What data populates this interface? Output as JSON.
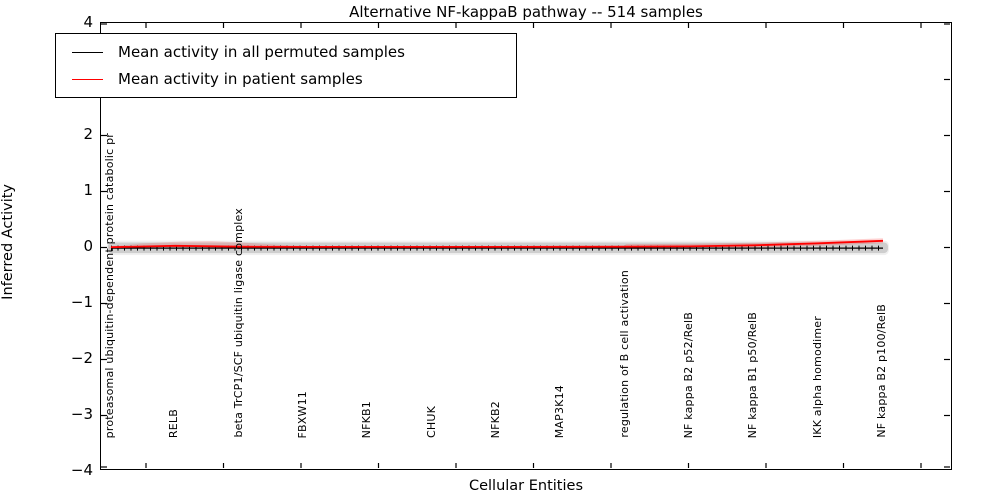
{
  "title": "Alternative NF-kappaB pathway -- 514 samples",
  "axes": {
    "ylabel": "Inferred Activity",
    "xlabel": "Cellular Entities",
    "yticks": [
      {
        "value": 4,
        "label": "4"
      },
      {
        "value": 3,
        "label": "3"
      },
      {
        "value": 2,
        "label": "2"
      },
      {
        "value": 1,
        "label": "1"
      },
      {
        "value": 0,
        "label": "0"
      },
      {
        "value": -1,
        "label": "−1"
      },
      {
        "value": -2,
        "label": "−2"
      },
      {
        "value": -3,
        "label": "−3"
      },
      {
        "value": -4,
        "label": "−4"
      }
    ]
  },
  "legend": {
    "items": [
      {
        "label": "Mean activity in all permuted samples",
        "color": "#000000"
      },
      {
        "label": "Mean activity in patient samples",
        "color": "#ff0000"
      }
    ]
  },
  "chart_data": {
    "type": "line",
    "title": "Alternative NF-kappaB pathway -- 514 samples",
    "xlabel": "Cellular Entities",
    "ylabel": "Inferred Activity",
    "ylim": [
      -4,
      4
    ],
    "grid": false,
    "legend_position": "upper left",
    "categories": [
      "proteasomal ubiquitin-dependent protein catabolic pr",
      "RELB",
      "beta TrCP1/SCF ubiquitin ligase complex",
      "FBXW11",
      "NFKB1",
      "CHUK",
      "NFKB2",
      "MAP3K14",
      "regulation of B cell activation",
      "NF kappa B2 p52/RelB",
      "NF kappa B1 p50/RelB",
      "IKK alpha homodimer",
      "NF kappa B2 p100/RelB"
    ],
    "series": [
      {
        "name": "Mean activity in all permuted samples",
        "color": "#000000",
        "marker": "tick",
        "values": [
          -0.01,
          -0.01,
          -0.01,
          -0.01,
          -0.01,
          -0.01,
          -0.01,
          -0.01,
          -0.01,
          -0.01,
          -0.01,
          -0.01,
          -0.01
        ]
      },
      {
        "name": "Mean activity in patient samples",
        "color": "#ff0000",
        "marker": "none",
        "values": [
          0.005,
          0.03,
          0.015,
          0.01,
          0.01,
          0.01,
          0.01,
          0.012,
          0.015,
          0.02,
          0.04,
          0.075,
          0.12
        ]
      }
    ],
    "band": {
      "name": "permuted samples spread",
      "range": [
        -0.1,
        0.09
      ],
      "color": "#dcdcdc"
    }
  }
}
